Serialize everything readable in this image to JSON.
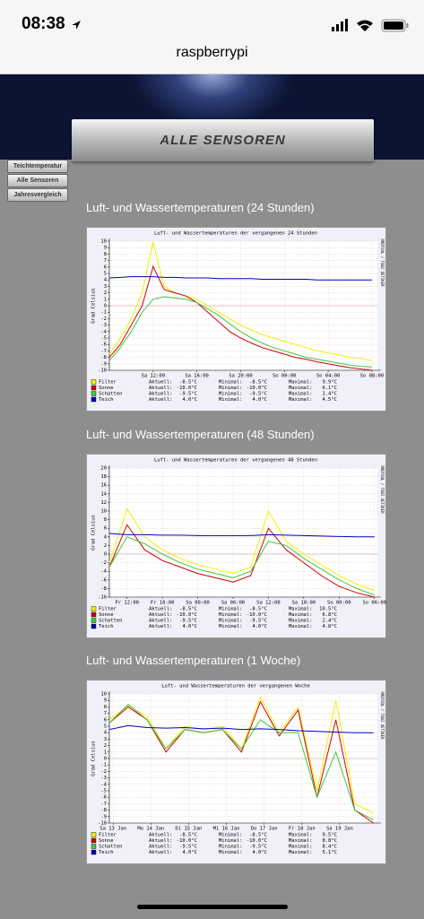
{
  "status_bar": {
    "time": "08:38"
  },
  "browser": {
    "address": "raspberrypi"
  },
  "header": {
    "title": "ALLE SENSOREN"
  },
  "nav": [
    "Teichtemperatur",
    "Alle Sensoren",
    "Jahresvergleich"
  ],
  "sections": [
    {
      "heading": "Luft- und Wassertemperaturen (24 Stunden)"
    },
    {
      "heading": "Luft- und Wassertemperaturen (48 Stunden)"
    },
    {
      "heading": "Luft- und Wassertemperaturen (1 Woche)"
    }
  ],
  "chart_data": [
    {
      "type": "line",
      "title": "Luft- und Wassertemperaturen der vergangenen 24 Stunden",
      "y_label": "Grad Celsius",
      "watermark": "RRDTOOL / TOBI OETIKER",
      "grid": true,
      "x": [
        0,
        1,
        2,
        3,
        4,
        5,
        6,
        7,
        8,
        9,
        10,
        11,
        12,
        13,
        14,
        15,
        16,
        17,
        18,
        19,
        20,
        21,
        22,
        23,
        24
      ],
      "xlim": [
        0,
        24.5
      ],
      "xticks": [
        {
          "value": 4,
          "label": "Sa 12:00"
        },
        {
          "value": 8,
          "label": "Sa 16:00"
        },
        {
          "value": 12,
          "label": "Sa 20:00"
        },
        {
          "value": 16,
          "label": "So 00:00"
        },
        {
          "value": 20,
          "label": "So 04:00"
        },
        {
          "value": 24,
          "label": "So 08:00"
        }
      ],
      "ylim": [
        -10,
        10
      ],
      "yticks": [
        -10,
        -9,
        -8,
        -7,
        -6,
        -5,
        -4,
        -3,
        -2,
        -1,
        0,
        1,
        2,
        3,
        4,
        5,
        6,
        7,
        8,
        9,
        10
      ],
      "series": [
        {
          "name": "Filter",
          "color": "#f0f000",
          "values": [
            -7.5,
            -5,
            -2,
            2,
            9.9,
            3,
            2,
            1.5,
            1,
            0,
            -1,
            -2,
            -3,
            -3.8,
            -4.5,
            -5,
            -5.5,
            -6,
            -6.5,
            -7,
            -7.3,
            -7.6,
            -8,
            -8.2,
            -8.5
          ],
          "stats": [
            {
              "label": "Aktuell:",
              "value": "-8.5°C"
            },
            {
              "label": "Minimal:",
              "value": "-8.5°C"
            },
            {
              "label": "Maximal:",
              "value": "9.9°C"
            }
          ]
        },
        {
          "name": "Sonne",
          "color": "#d00000",
          "values": [
            -8,
            -6,
            -3,
            0,
            6.1,
            2.5,
            2,
            1.5,
            0.5,
            -1,
            -2.5,
            -4,
            -5,
            -5.8,
            -6.5,
            -7,
            -7.5,
            -8,
            -8.3,
            -8.7,
            -9,
            -9.3,
            -9.6,
            -9.8,
            -10
          ],
          "stats": [
            {
              "label": "Aktuell:",
              "value": "-10.0°C"
            },
            {
              "label": "Minimal:",
              "value": "-10.0°C"
            },
            {
              "label": "Maximal:",
              "value": "6.1°C"
            }
          ]
        },
        {
          "name": "Schatten",
          "color": "#40c840",
          "values": [
            -8.5,
            -6.5,
            -4,
            -1,
            1,
            1.4,
            1.2,
            1,
            0.5,
            -0.5,
            -1.5,
            -2.8,
            -4,
            -5,
            -5.8,
            -6.5,
            -7,
            -7.5,
            -8,
            -8.3,
            -8.6,
            -8.9,
            -9.2,
            -9.4,
            -9.5
          ],
          "stats": [
            {
              "label": "Aktuell:",
              "value": "-9.5°C"
            },
            {
              "label": "Minimal:",
              "value": "-9.5°C"
            },
            {
              "label": "Maximal:",
              "value": "1.4°C"
            }
          ]
        },
        {
          "name": "Teich",
          "color": "#0000c0",
          "values": [
            4.3,
            4.4,
            4.5,
            4.5,
            4.5,
            4.4,
            4.4,
            4.3,
            4.3,
            4.3,
            4.2,
            4.2,
            4.2,
            4.2,
            4.1,
            4.1,
            4.1,
            4.1,
            4.1,
            4.0,
            4.0,
            4.0,
            4.0,
            4.0,
            4.0
          ],
          "stats": [
            {
              "label": "Aktuell:",
              "value": "4.0°C"
            },
            {
              "label": "Minimal:",
              "value": "4.0°C"
            },
            {
              "label": "Maximal:",
              "value": "4.5°C"
            }
          ]
        }
      ]
    },
    {
      "type": "line",
      "title": "Luft- und Wassertemperaturen der vergangenen 48 Stunden",
      "y_label": "Grad Celsius",
      "watermark": "RRDTOOL / TOBI OETIKER",
      "grid": true,
      "x": [
        0,
        3,
        6,
        9,
        12,
        15,
        18,
        21,
        24,
        27,
        30,
        33,
        36,
        39,
        42,
        45
      ],
      "xlim": [
        0,
        45.5
      ],
      "xticks": [
        {
          "value": 3,
          "label": "Fr 12:00"
        },
        {
          "value": 9,
          "label": "Fr 18:00"
        },
        {
          "value": 15,
          "label": "Sa 00:00"
        },
        {
          "value": 21,
          "label": "Sa 06:00"
        },
        {
          "value": 27,
          "label": "Sa 12:00"
        },
        {
          "value": 33,
          "label": "Sa 18:00"
        },
        {
          "value": 39,
          "label": "So 00:00"
        },
        {
          "value": 45,
          "label": "So 06:00"
        }
      ],
      "ylim": [
        -10,
        20
      ],
      "yticks": [
        -10,
        -8,
        -6,
        -4,
        -2,
        0,
        2,
        4,
        6,
        8,
        10,
        12,
        14,
        16,
        18,
        20
      ],
      "series": [
        {
          "name": "Filter",
          "color": "#f0f000",
          "values": [
            -2,
            10.5,
            4,
            1,
            -1,
            -2.5,
            -3.5,
            -4.5,
            -3,
            10,
            3,
            0,
            -2.5,
            -5,
            -7,
            -8.5
          ],
          "stats": [
            {
              "label": "Aktuell:",
              "value": "-8.5°C"
            },
            {
              "label": "Minimal:",
              "value": "-8.5°C"
            },
            {
              "label": "Maximal:",
              "value": "10.5°C"
            }
          ]
        },
        {
          "name": "Sonne",
          "color": "#d00000",
          "values": [
            -3,
            6.8,
            1,
            -1.5,
            -3,
            -4.5,
            -5.5,
            -6.5,
            -5,
            6,
            1,
            -2,
            -5,
            -7.5,
            -9,
            -10
          ],
          "stats": [
            {
              "label": "Aktuell:",
              "value": "-10.0°C"
            },
            {
              "label": "Minimal:",
              "value": "-10.0°C"
            },
            {
              "label": "Maximal:",
              "value": "6.8°C"
            }
          ]
        },
        {
          "name": "Schatten",
          "color": "#40c840",
          "values": [
            -3,
            4,
            2.4,
            0,
            -2,
            -3.5,
            -4.5,
            -5.5,
            -4,
            3,
            2,
            -1,
            -3.5,
            -6,
            -8,
            -9.5
          ],
          "stats": [
            {
              "label": "Aktuell:",
              "value": "-9.5°C"
            },
            {
              "label": "Minimal:",
              "value": "-9.5°C"
            },
            {
              "label": "Maximal:",
              "value": "2.4°C"
            }
          ]
        },
        {
          "name": "Teich",
          "color": "#0000c0",
          "values": [
            4.8,
            4.5,
            4.5,
            4.4,
            4.4,
            4.3,
            4.3,
            4.3,
            4.3,
            4.5,
            4.4,
            4.3,
            4.2,
            4.1,
            4.0,
            4.0
          ],
          "stats": [
            {
              "label": "Aktuell:",
              "value": "4.0°C"
            },
            {
              "label": "Minimal:",
              "value": "4.0°C"
            },
            {
              "label": "Maximal:",
              "value": "4.8°C"
            }
          ]
        }
      ]
    },
    {
      "type": "line",
      "title": "Luft- und Wassertemperaturen der vergangenen Woche",
      "y_label": "Grad Celsius",
      "watermark": "RRDTOOL / TOBI OETIKER",
      "grid": true,
      "x": [
        0,
        0.5,
        1,
        1.5,
        2,
        2.5,
        3,
        3.5,
        4,
        4.5,
        5,
        5.5,
        6,
        6.5,
        7
      ],
      "xlim": [
        0,
        7.1
      ],
      "xticks": [
        {
          "value": 0.1,
          "label": "Sa 13 Jan"
        },
        {
          "value": 1.1,
          "label": "Mo 14 Jan"
        },
        {
          "value": 2.1,
          "label": "Di 15 Jan"
        },
        {
          "value": 3.1,
          "label": "Mi 16 Jan"
        },
        {
          "value": 4.1,
          "label": "Do 17 Jan"
        },
        {
          "value": 5.1,
          "label": "Fr 18 Jan"
        },
        {
          "value": 6.1,
          "label": "Sa 19 Jan"
        }
      ],
      "ylim": [
        -10,
        10
      ],
      "yticks": [
        -10,
        -9,
        -8,
        -7,
        -6,
        -5,
        -4,
        -3,
        -2,
        -1,
        0,
        1,
        2,
        3,
        4,
        5,
        6,
        7,
        8,
        9,
        10
      ],
      "series": [
        {
          "name": "Filter",
          "color": "#f0f000",
          "values": [
            6,
            8.2,
            6.5,
            1.5,
            5,
            4.5,
            5,
            1.5,
            9.5,
            4,
            8,
            -5,
            9,
            -7,
            -8.5
          ],
          "stats": [
            {
              "label": "Aktuell:",
              "value": "-8.5°C"
            },
            {
              "label": "Minimal:",
              "value": "-8.5°C"
            },
            {
              "label": "Maximal:",
              "value": "9.5°C"
            }
          ]
        },
        {
          "name": "Sonne",
          "color": "#d00000",
          "values": [
            5.5,
            8,
            6,
            1,
            4.5,
            4,
            4.5,
            1,
            8.8,
            3.5,
            7.5,
            -6,
            6,
            -8,
            -10
          ],
          "stats": [
            {
              "label": "Aktuell:",
              "value": "-10.0°C"
            },
            {
              "label": "Minimal:",
              "value": "-10.0°C"
            },
            {
              "label": "Maximal:",
              "value": "8.8°C"
            }
          ]
        },
        {
          "name": "Schatten",
          "color": "#40c840",
          "values": [
            5.5,
            8.4,
            6,
            1.5,
            4.5,
            4,
            4.5,
            1.5,
            6,
            4,
            4,
            -6,
            1,
            -8,
            -9.5
          ],
          "stats": [
            {
              "label": "Aktuell:",
              "value": "-9.5°C"
            },
            {
              "label": "Minimal:",
              "value": "-9.5°C"
            },
            {
              "label": "Maximal:",
              "value": "8.4°C"
            }
          ]
        },
        {
          "name": "Teich",
          "color": "#0000c0",
          "values": [
            4.5,
            5.1,
            4.8,
            4.7,
            4.8,
            4.6,
            4.7,
            4.5,
            4.6,
            4.5,
            4.3,
            4.2,
            4.1,
            4.0,
            4.0
          ],
          "stats": [
            {
              "label": "Aktuell:",
              "value": "4.0°C"
            },
            {
              "label": "Minimal:",
              "value": "4.0°C"
            },
            {
              "label": "Maximal:",
              "value": "5.1°C"
            }
          ]
        }
      ]
    }
  ]
}
